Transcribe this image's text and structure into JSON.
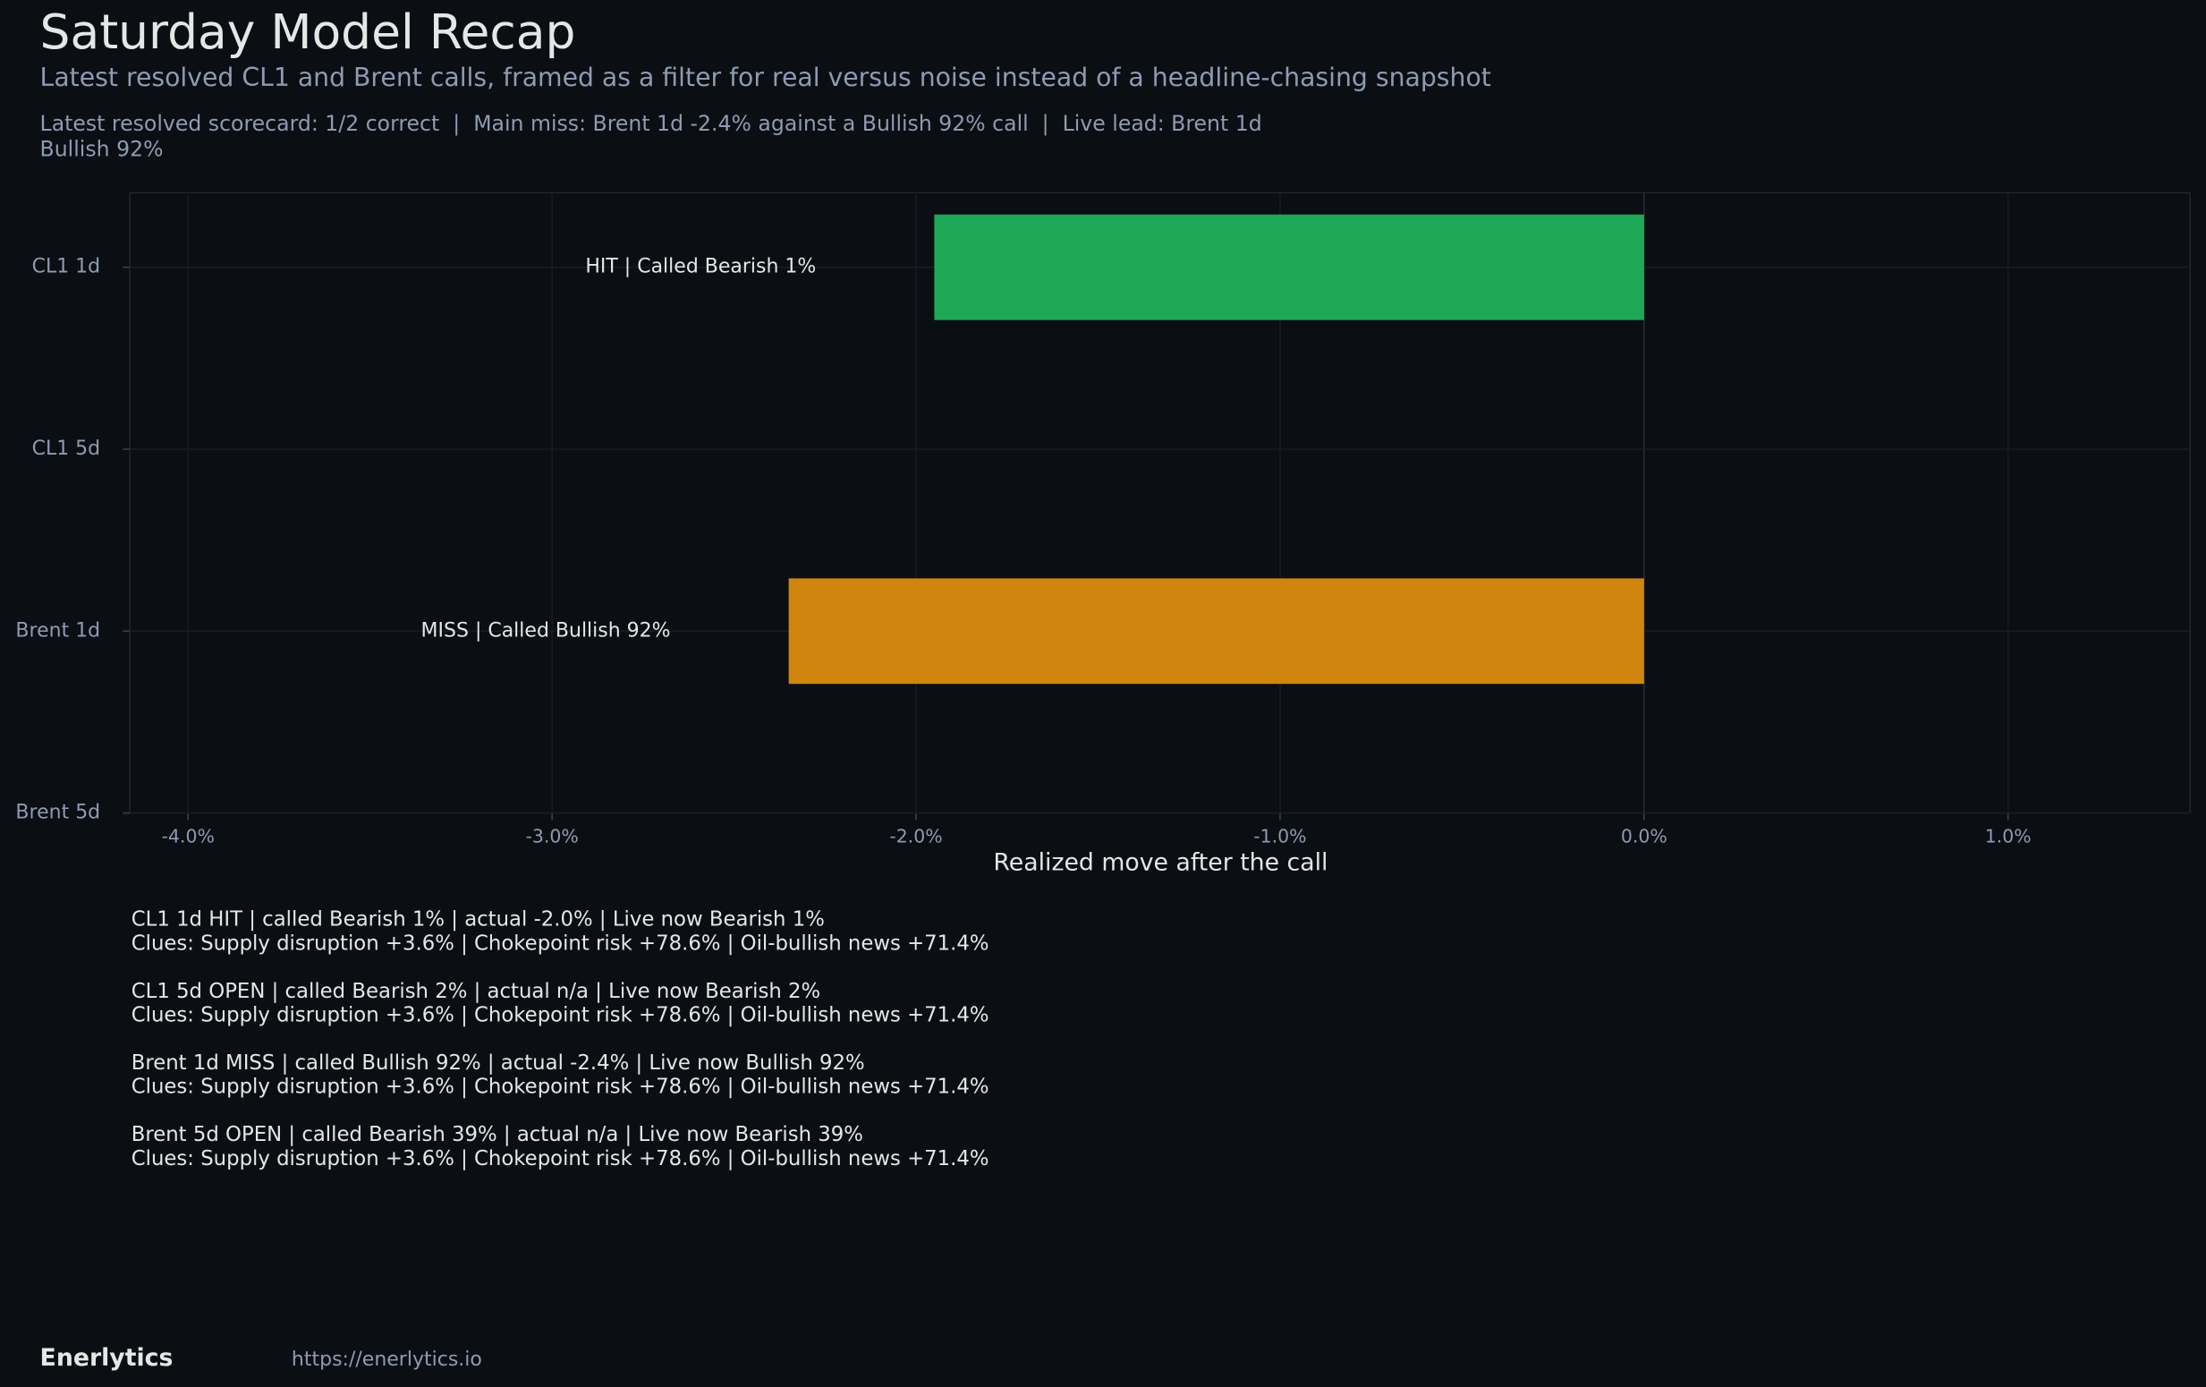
{
  "chart_data": {
    "type": "hbar",
    "title": "Saturday Model Recap",
    "subtitle": "Latest resolved CL1 and Brent calls, framed as a filter for real versus noise instead of a headline-chasing snapshot",
    "x_label": "Realized move after the call",
    "categories": [
      "CL1 1d",
      "CL1 5d",
      "Brent 1d",
      "Brent 5d"
    ],
    "values": [
      -1.95,
      null,
      -2.35,
      null
    ],
    "colors": [
      "#1fa855",
      null,
      "#d0860e",
      null
    ],
    "bar_labels": [
      "HIT | Called Bearish 1%",
      null,
      "MISS | Called Bullish 92%",
      null
    ],
    "xlim": [
      -4.16,
      1.5
    ],
    "xticks": [
      {
        "value": -4,
        "label": "-4.0%"
      },
      {
        "value": -3,
        "label": "-3.0%"
      },
      {
        "value": -2,
        "label": "-2.0%"
      },
      {
        "value": -1,
        "label": "-1.0%"
      },
      {
        "value": 0,
        "label": "0.0%"
      },
      {
        "value": 1,
        "label": "1.0%"
      }
    ],
    "grid": true
  },
  "scorecard": "Latest resolved scorecard: 1/2 correct  |  Main miss: Brent 1d -2.4% against a Bullish 92% call  |  Live lead: Brent 1d Bullish 92%",
  "notes": [
    {
      "headline": "CL1 1d HIT | called Bearish 1% | actual -2.0% | Live now Bearish 1%",
      "clues": "Clues: Supply disruption +3.6% | Chokepoint risk +78.6% | Oil-bullish news +71.4%"
    },
    {
      "headline": "CL1 5d OPEN | called Bearish 2% | actual n/a | Live now Bearish 2%",
      "clues": "Clues: Supply disruption +3.6% | Chokepoint risk +78.6% | Oil-bullish news +71.4%"
    },
    {
      "headline": "Brent 1d MISS | called Bullish 92% | actual -2.4% | Live now Bullish 92%",
      "clues": "Clues: Supply disruption +3.6% | Chokepoint risk +78.6% | Oil-bullish news +71.4%"
    },
    {
      "headline": "Brent 5d OPEN | called Bearish 39% | actual n/a | Live now Bearish 39%",
      "clues": "Clues: Supply disruption +3.6% | Chokepoint risk +78.6% | Oil-bullish news +71.4%"
    }
  ],
  "footer": {
    "brand": "Enerlytics",
    "url": "https://enerlytics.io"
  }
}
